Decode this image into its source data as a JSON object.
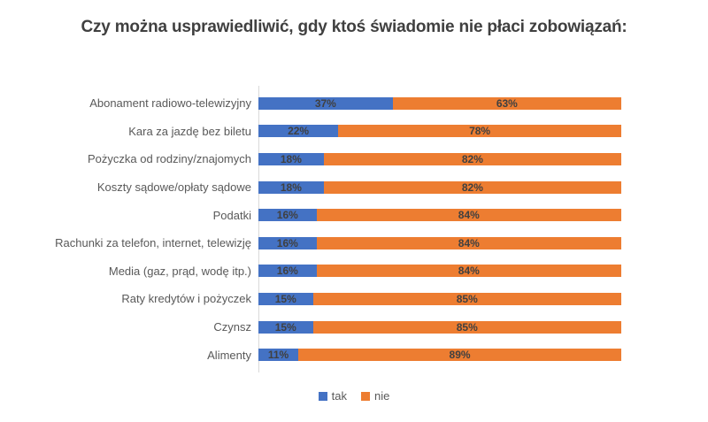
{
  "title": "Czy można usprawiedliwić, gdy ktoś świadomie nie płaci zobowiązań:",
  "colors": {
    "tak": "#4472C4",
    "nie": "#ED7D31",
    "data_label": "#404040",
    "category_label": "#595959",
    "title": "#404040",
    "axis": "#D9D9D9"
  },
  "legend": {
    "items": [
      {
        "label": "tak",
        "color": "#4472C4"
      },
      {
        "label": "nie",
        "color": "#ED7D31"
      }
    ],
    "position": "bottom"
  },
  "chart_data": {
    "type": "bar",
    "subtype": "stacked-horizontal-100pct",
    "title": "Czy można usprawiedliwić, gdy ktoś świadomie nie płaci zobowiązań:",
    "xlabel": "",
    "ylabel": "",
    "xlim": [
      0,
      100
    ],
    "grid": false,
    "legend_position": "bottom",
    "value_suffix": "%",
    "categories": [
      "Abonament radiowo-telewizyjny",
      "Kara za jazdę bez biletu",
      "Pożyczka od rodziny/znajomych",
      "Koszty sądowe/opłaty sądowe",
      "Podatki",
      "Rachunki za telefon, internet, telewizję",
      "Media (gaz, prąd, wodę itp.)",
      "Raty kredytów i pożyczek",
      "Czynsz",
      "Alimenty"
    ],
    "series": [
      {
        "name": "tak",
        "color": "#4472C4",
        "values": [
          37,
          22,
          18,
          18,
          16,
          16,
          16,
          15,
          15,
          11
        ]
      },
      {
        "name": "nie",
        "color": "#ED7D31",
        "values": [
          63,
          78,
          82,
          82,
          84,
          84,
          84,
          85,
          85,
          89
        ]
      }
    ]
  }
}
